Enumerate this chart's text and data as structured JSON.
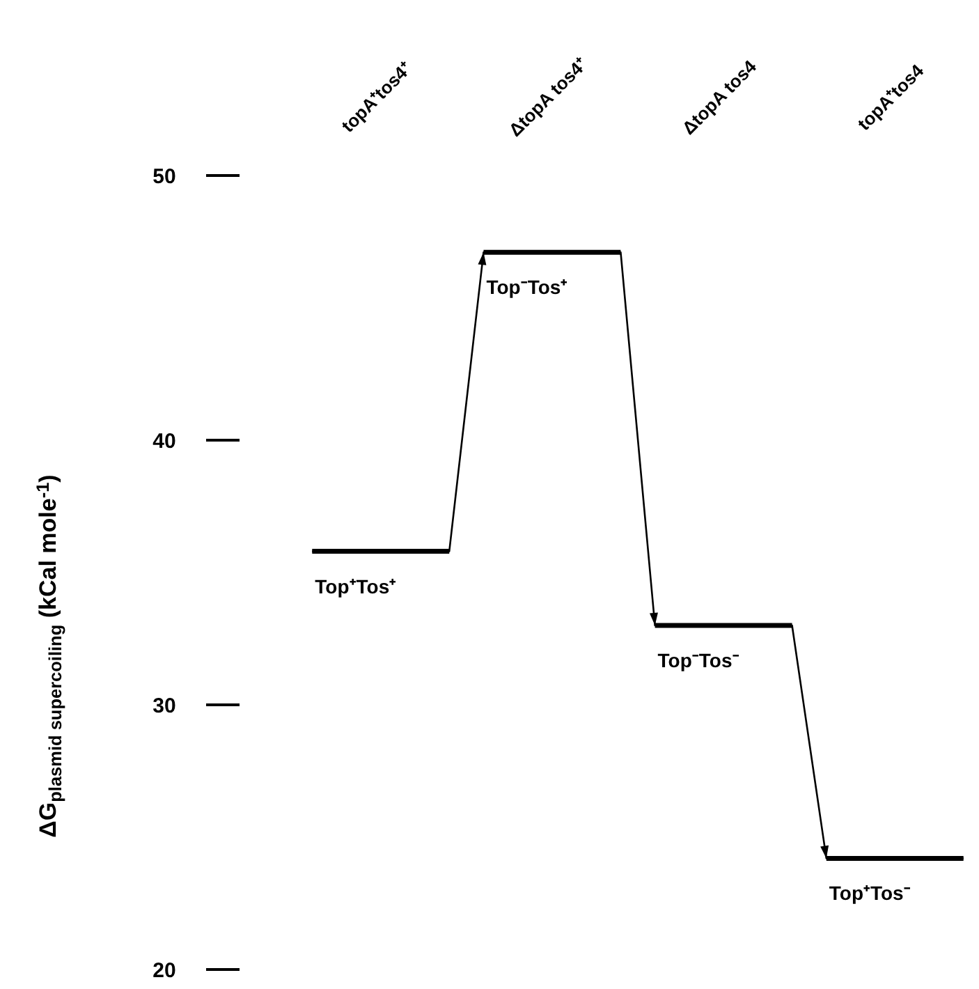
{
  "chart_data": {
    "type": "step",
    "ylabel": "ΔG$_{plasmid supercoiling}$ (kCal mole$^{-1}$)",
    "categories": [
      "topA⁺tos4⁺",
      "ΔtopA tos4⁺",
      "ΔtopA tos4",
      "topA⁺tos4"
    ],
    "series": [
      {
        "color": "#000000",
        "values": [
          35.8,
          47.1,
          33.0,
          24.2
        ]
      }
    ],
    "ylim": [
      20,
      50
    ],
    "yticks": [
      20,
      30,
      40,
      50
    ],
    "grid": false,
    "annotations": [
      {
        "text": "Top⁺Tos⁺",
        "x": "topA⁺tos4⁺",
        "y": 35.8
      },
      {
        "text": "Top⁻Tos⁺",
        "x": "ΔtopA tos4⁺",
        "y": 47.1
      },
      {
        "text": "Top⁻Tos⁻",
        "x": "ΔtopA tos4",
        "y": 33.0
      },
      {
        "text": "Top⁺Tos⁻",
        "x": "topA⁺tos4",
        "y": 24.2
      }
    ]
  }
}
